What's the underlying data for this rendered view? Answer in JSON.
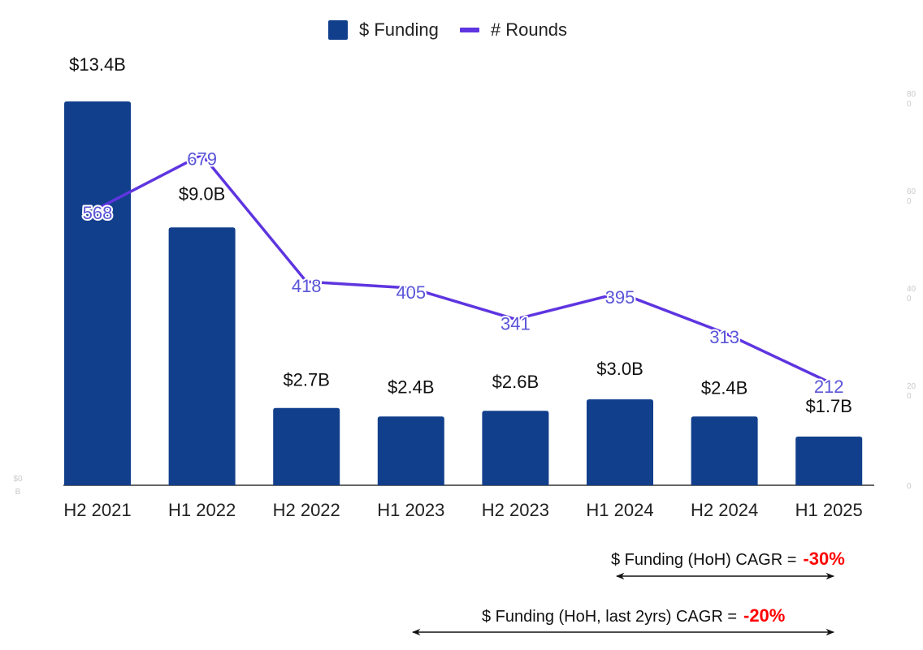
{
  "chart_data": {
    "type": "bar+line",
    "title": "",
    "legend": {
      "position": "top-center",
      "entries": [
        "$ Funding",
        "# Rounds"
      ]
    },
    "categories": [
      "H2 2021",
      "H1 2022",
      "H2 2022",
      "H1 2023",
      "H2 2023",
      "H1 2024",
      "H2 2024",
      "H1 2025"
    ],
    "series": [
      {
        "name": "$ Funding",
        "type": "bar",
        "axis": "left",
        "color": "#123f8c",
        "values": [
          13.4,
          9.0,
          2.7,
          2.4,
          2.6,
          3.0,
          2.4,
          1.7
        ],
        "labels": [
          "$13.4B",
          "$9.0B",
          "$2.7B",
          "$2.4B",
          "$2.6B",
          "$3.0B",
          "$2.4B",
          "$1.7B"
        ]
      },
      {
        "name": "# Rounds",
        "type": "line",
        "axis": "right",
        "color": "#5e35e0",
        "values": [
          568,
          679,
          418,
          405,
          341,
          395,
          313,
          212
        ],
        "labels": [
          "568",
          "679",
          "418",
          "405",
          "341",
          "395",
          "313",
          "212"
        ]
      }
    ],
    "y_left": {
      "unit": "B",
      "min": 0,
      "ticks": [
        "$0 B"
      ]
    },
    "y_right": {
      "min": 0,
      "max": 800,
      "ticks": [
        "0",
        "200",
        "400",
        "600",
        "800"
      ]
    },
    "grid": false
  },
  "annotations": [
    {
      "text": "$ Funding (HoH) CAGR =",
      "value": "-30%"
    },
    {
      "text": "$ Funding (HoH, last 2yrs) CAGR =",
      "value": "-20%"
    }
  ]
}
